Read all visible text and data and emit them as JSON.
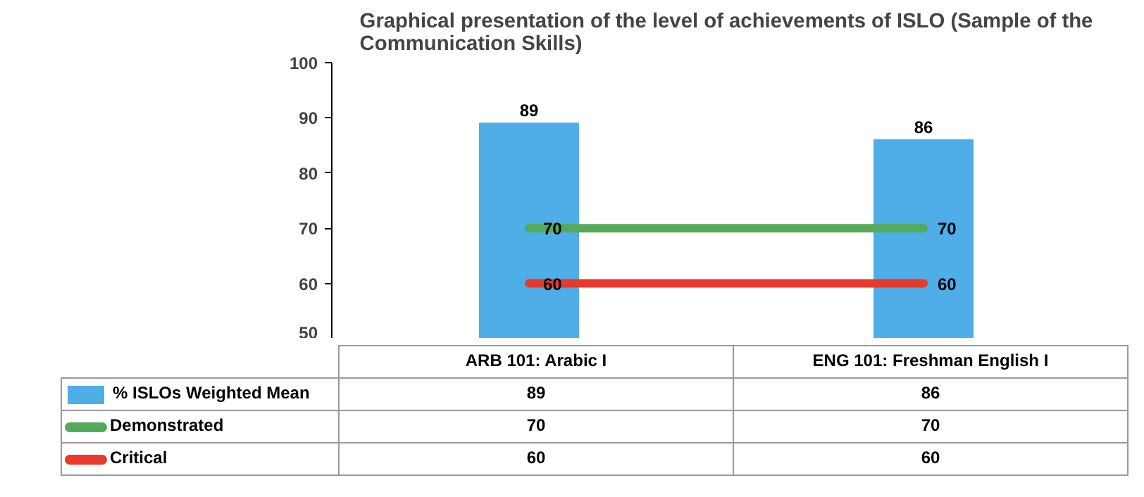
{
  "chart_data": {
    "type": "bar",
    "title": "Graphical presentation of the level of achievements of ISLO (Sample of the Communication Skills)",
    "categories": [
      "ARB 101: Arabic I",
      "ENG 101: Freshman English I"
    ],
    "series": [
      {
        "name": "% ISLOs Weighted Mean",
        "color": "#4fade8",
        "values": [
          89,
          86
        ],
        "value_labels": [
          "89",
          "86"
        ]
      },
      {
        "name": "Demonstrated",
        "color": "#55aa5a",
        "values": [
          70,
          70
        ],
        "type": "line",
        "value_labels": [
          "70",
          "70"
        ]
      },
      {
        "name": "Critical",
        "color": "#e8392b",
        "values": [
          60,
          60
        ],
        "type": "line",
        "value_labels": [
          "60",
          "60"
        ]
      }
    ],
    "ylim": [
      50,
      100
    ],
    "yticks": [
      50,
      60,
      70,
      80,
      90,
      100
    ],
    "grid": false,
    "legend": "bottom",
    "data_labels": true
  }
}
